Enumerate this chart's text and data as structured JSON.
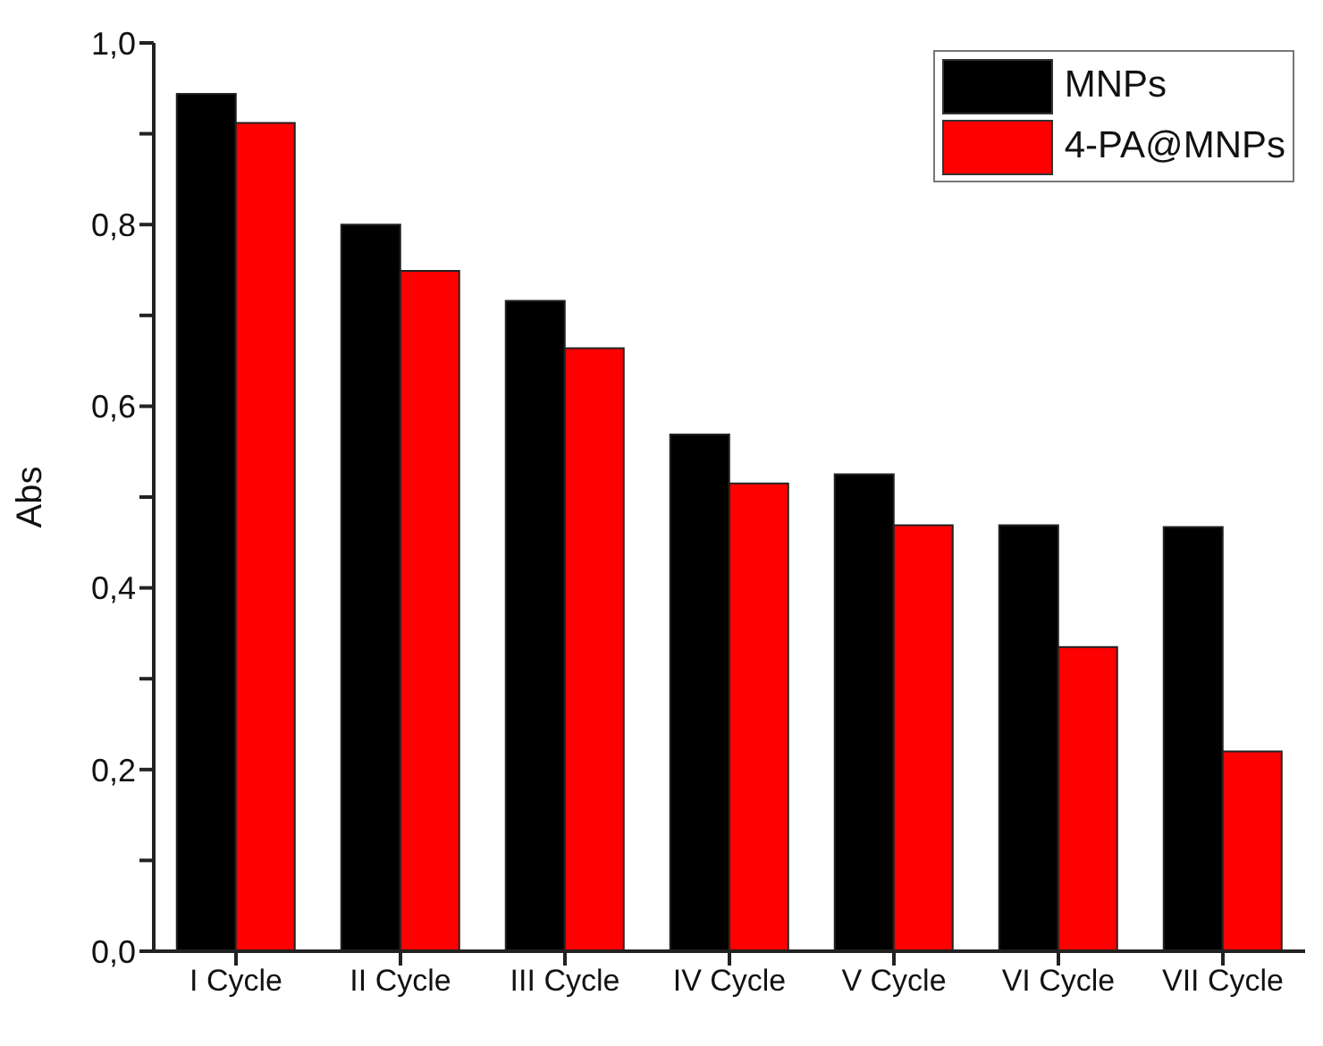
{
  "chart_data": {
    "type": "bar",
    "ylabel": "Abs",
    "categories": [
      "I Cycle",
      "II Cycle",
      "III Cycle",
      "IV Cycle",
      "V Cycle",
      "VI Cycle",
      "VII Cycle"
    ],
    "series": [
      {
        "name": "MNPs",
        "color": "#000000",
        "values": [
          0.944,
          0.8,
          0.716,
          0.569,
          0.525,
          0.469,
          0.467
        ]
      },
      {
        "name": "4-PA@MNPs",
        "color": "#ff0000",
        "values": [
          0.912,
          0.749,
          0.664,
          0.515,
          0.469,
          0.335,
          0.22
        ]
      }
    ],
    "ylim": [
      0,
      1
    ],
    "yticks": [
      {
        "value": 0,
        "label": "0,0"
      },
      {
        "value": 0.1,
        "label": null
      },
      {
        "value": 0.2,
        "label": "0,2"
      },
      {
        "value": 0.3,
        "label": null
      },
      {
        "value": 0.4,
        "label": "0,4"
      },
      {
        "value": 0.5,
        "label": null
      },
      {
        "value": 0.6,
        "label": "0,6"
      },
      {
        "value": 0.7,
        "label": null
      },
      {
        "value": 0.8,
        "label": "0,8"
      },
      {
        "value": 0.9,
        "label": null
      },
      {
        "value": 1,
        "label": "1,0"
      }
    ],
    "grid": false,
    "legend": "top right"
  }
}
